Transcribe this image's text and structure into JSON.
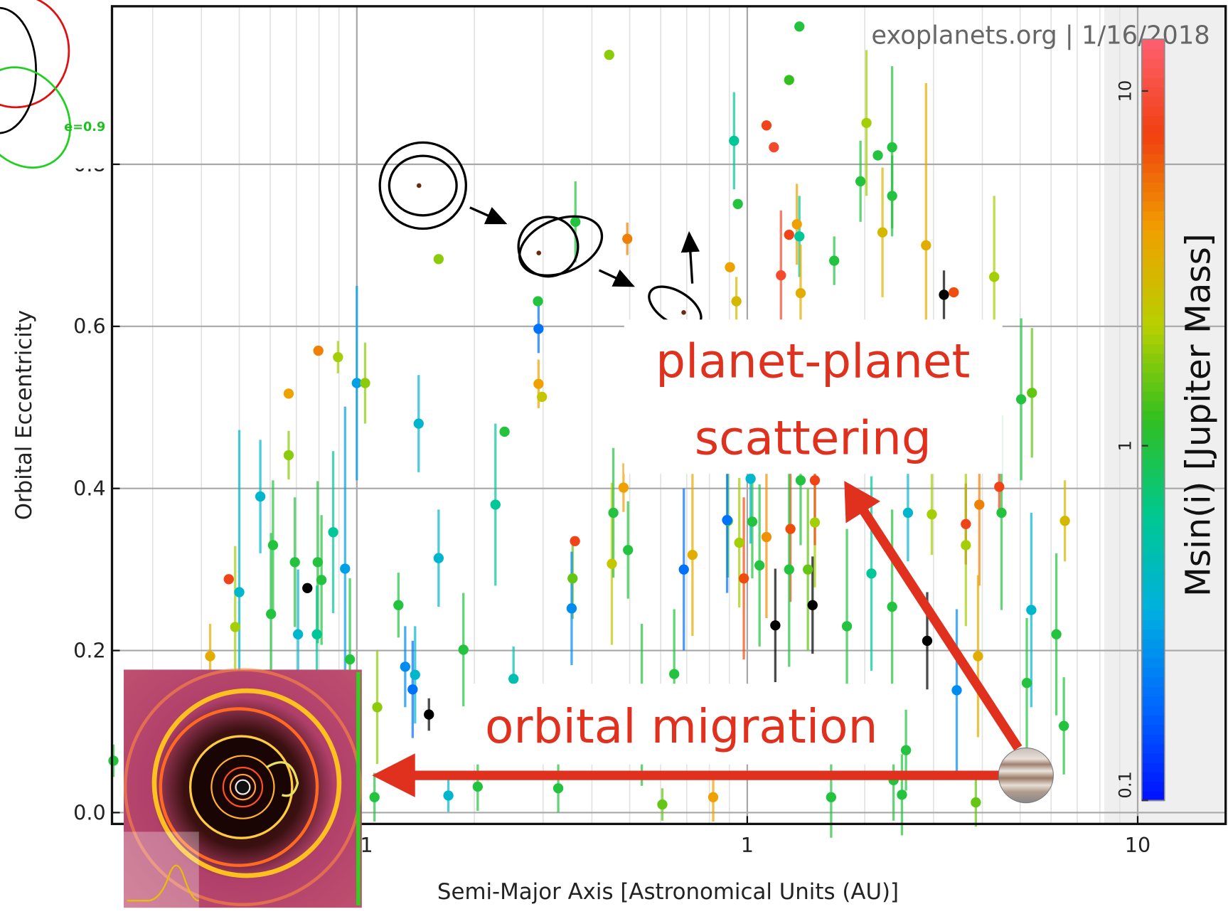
{
  "chart_data": {
    "type": "scatter",
    "watermark": "exoplanets.org | 1/16/2018",
    "xlabel": "Semi-Major Axis [Astronomical Units (AU)]",
    "ylabel": "Orbital Eccentricity",
    "colorbar_label": "Msin(i) [Jupiter Mass]",
    "xscale": "log",
    "xlim": [
      0.0236,
      16.8
    ],
    "xticks": [
      {
        "value": 0.1,
        "label": "0.1"
      },
      1,
      10
    ],
    "ylim": [
      -0.014,
      0.995
    ],
    "yticks": [
      {
        "value": 0,
        "label": "0.0"
      },
      0.2,
      0.4,
      0.6,
      0.8
    ],
    "grid": true,
    "colormap_stops": [
      "#0010ff",
      "#0068ff",
      "#00b0e0",
      "#00c890",
      "#30c020",
      "#b8d000",
      "#f0a000",
      "#f04010",
      "#ff6070"
    ],
    "clim": [
      0.1,
      14
    ],
    "cticks": [
      0.1,
      1,
      10
    ],
    "missing_color": "#000000",
    "x": [
      1.36,
      0.443,
      1.28,
      1.12,
      1.17,
      0.925,
      2.02,
      2.35,
      2.16,
      1.95,
      2.35,
      0.946,
      2.22,
      1.34,
      1.36,
      1.28,
      0.493,
      1.22,
      0.903,
      0.938,
      1.37,
      1.67,
      2.87,
      4.29,
      3.19,
      3.38,
      0.162,
      0.291,
      0.292,
      0.292,
      0.298,
      0.363,
      0.239,
      0.144,
      0.1,
      0.105,
      0.0797,
      0.0895,
      0.0669,
      0.0669,
      0.0566,
      0.061,
      0.087,
      0.0933,
      0.0694,
      0.0794,
      0.0812,
      0.0747,
      0.047,
      0.05,
      0.0707,
      0.0603,
      0.079,
      0.0488,
      0.0421,
      0.096,
      0.1128,
      0.162,
      0.2265,
      0.1875,
      0.1278,
      0.133,
      0.141,
      0.139,
      0.153,
      0.362,
      0.357,
      0.355,
      0.45,
      0.482,
      0.454,
      0.495,
      0.688,
      0.724,
      0.892,
      1.03,
      0.954,
      1.12,
      1.29,
      1.49,
      1.075,
      0.98,
      1.28,
      1.43,
      2.08,
      1.47,
      1.18,
      2.89,
      1.8,
      2.35,
      2.58,
      2.97,
      3.63,
      3.93,
      4.42,
      3.63,
      4.48,
      6.51,
      5.03,
      5.36,
      5.34,
      6.19,
      3.44,
      3.9,
      5.2,
      1.49,
      1.37,
      1.02,
      0.888,
      0.65,
      0.606,
      0.818,
      0.204,
      0.1716,
      0.111,
      0.328,
      1.64,
      2.49,
      3.85,
      6.47,
      0.0238,
      2.55,
      2.37,
      0.537,
      0.252
    ],
    "values": [
      0.97,
      0.935,
      0.904,
      0.848,
      0.821,
      0.829,
      0.851,
      0.821,
      0.811,
      0.779,
      0.761,
      0.751,
      0.716,
      0.726,
      0.711,
      0.713,
      0.708,
      0.663,
      0.673,
      0.631,
      0.641,
      0.681,
      0.7,
      0.661,
      0.639,
      0.642,
      0.683,
      0.631,
      0.597,
      0.529,
      0.513,
      0.729,
      0.47,
      0.48,
      0.53,
      0.53,
      0.57,
      0.562,
      0.517,
      0.441,
      0.39,
      0.33,
      0.346,
      0.301,
      0.309,
      0.309,
      0.287,
      0.277,
      0.288,
      0.272,
      0.22,
      0.245,
      0.22,
      0.229,
      0.193,
      0.189,
      0.13,
      0.314,
      0.38,
      0.201,
      0.256,
      0.18,
      0.17,
      0.152,
      0.121,
      0.335,
      0.289,
      0.252,
      0.307,
      0.401,
      0.37,
      0.324,
      0.3,
      0.318,
      0.36,
      0.359,
      0.333,
      0.34,
      0.35,
      0.358,
      0.305,
      0.289,
      0.3,
      0.3,
      0.295,
      0.256,
      0.231,
      0.212,
      0.23,
      0.254,
      0.37,
      0.368,
      0.356,
      0.38,
      0.402,
      0.33,
      0.37,
      0.36,
      0.51,
      0.518,
      0.25,
      0.22,
      0.151,
      0.193,
      0.16,
      0.41,
      0.41,
      0.412,
      0.361,
      0.171,
      0.01,
      0.019,
      0.032,
      0.021,
      0.019,
      0.03,
      0.019,
      0.022,
      0.0126,
      0.107,
      0.064,
      0.077,
      0.04,
      0.133,
      0.165
    ],
    "mass": [
      1,
      1.8,
      1.2,
      8,
      9,
      0.6,
      2,
      1,
      1,
      1,
      1,
      1,
      3,
      4,
      0.6,
      8,
      5,
      9,
      4,
      3,
      3.5,
      1,
      3.5,
      2,
      null,
      7,
      1.8,
      1,
      0.2,
      4,
      2.5,
      1,
      1,
      0.4,
      0.3,
      1.8,
      5,
      2,
      4,
      1.8,
      0.4,
      1,
      0.6,
      0.3,
      1,
      1,
      1,
      null,
      8,
      0.4,
      0.4,
      1,
      0.6,
      2,
      3.5,
      1,
      1.8,
      0.4,
      0.6,
      1,
      1,
      0.25,
      0.4,
      0.2,
      null,
      8,
      1.5,
      0.25,
      2.5,
      4,
      1,
      1,
      0.2,
      3.5,
      1,
      1,
      2,
      4.5,
      7,
      2,
      1,
      7,
      1,
      1.5,
      0.6,
      null,
      null,
      null,
      1,
      1,
      0.4,
      2,
      8,
      5,
      8,
      2,
      1,
      3,
      1,
      1.5,
      0.4,
      1,
      0.25,
      3.5,
      1,
      8,
      1,
      0.4,
      0.2,
      1,
      1.5,
      4,
      1,
      0.4,
      1,
      1,
      1,
      1,
      1.5,
      1,
      1,
      1,
      1,
      1,
      0.5
    ],
    "yerr": [
      0,
      0,
      0,
      0,
      0,
      0.06,
      0.09,
      0.1,
      0,
      0.05,
      0.05,
      0,
      0.08,
      0.05,
      0.05,
      0,
      0.02,
      0.08,
      0,
      0.03,
      0.06,
      0.03,
      0.2,
      0.1,
      0.03,
      0,
      0,
      0,
      0.03,
      0.03,
      0,
      0.05,
      0,
      0.06,
      0.12,
      0.05,
      0,
      0.02,
      0,
      0.03,
      0.07,
      0.08,
      0.1,
      0.2,
      0.08,
      0.1,
      0.08,
      0,
      0,
      0.2,
      0.08,
      0.1,
      0.06,
      0.1,
      0.04,
      0.1,
      0.07,
      0.06,
      0.1,
      0.07,
      0.04,
      0.05,
      0.06,
      0.06,
      0.02,
      0,
      0.05,
      0.07,
      0.1,
      0.03,
      0.08,
      0.06,
      0.1,
      0.1,
      0.07,
      0.07,
      0.08,
      0.1,
      0.09,
      0.08,
      0.1,
      0.1,
      0.12,
      0.1,
      0.12,
      0.06,
      0.07,
      0.06,
      0.12,
      0.12,
      0.06,
      0.05,
      0.05,
      0.1,
      0.03,
      0.1,
      0.12,
      0.05,
      0.1,
      0.08,
      0.12,
      0.1,
      0.1,
      0.1,
      0.08,
      0.08,
      0.08,
      0.08,
      0.09,
      0.08,
      0.02,
      0.03,
      0.03,
      0.02,
      0.03,
      0.03,
      0.05,
      0.05,
      0.03,
      0.06,
      0.02,
      0.05,
      0.05,
      0.1,
      0.04
    ]
  },
  "annotations": {
    "scattering_lines": [
      "planet-planet",
      "scattering"
    ],
    "migration": "orbital migration",
    "orbit_label": "e=0.9"
  }
}
